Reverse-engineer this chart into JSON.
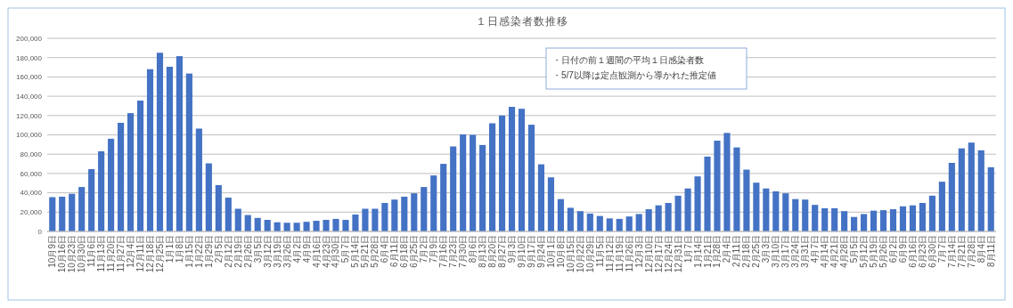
{
  "chart_data": {
    "type": "bar",
    "title": "１日感染者数推移",
    "categories": [
      "10月9日",
      "10月16日",
      "10月23日",
      "10月30日",
      "11月6日",
      "11月13日",
      "11月20日",
      "11月27日",
      "12月4日",
      "12月11日",
      "12月18日",
      "12月25日",
      "1月1日",
      "1月8日",
      "1月15日",
      "1月22日",
      "1月29日",
      "2月5日",
      "2月12日",
      "2月19日",
      "2月26日",
      "3月5日",
      "3月12日",
      "3月19日",
      "3月26日",
      "4月2日",
      "4月9日",
      "4月16日",
      "4月23日",
      "4月30日",
      "5月7日",
      "5月14日",
      "5月21日",
      "5月28日",
      "6月4日",
      "6月11日",
      "6月18日",
      "6月25日",
      "7月2日",
      "7月9日",
      "7月16日",
      "7月23日",
      "7月30日",
      "8月6日",
      "8月13日",
      "8月20日",
      "8月27日",
      "9月3日",
      "9月10日",
      "9月17日",
      "9月24日",
      "10月1日",
      "10月8日",
      "10月15日",
      "10月22日",
      "10月29日",
      "11月5日",
      "11月12日",
      "11月19日",
      "11月26日",
      "12月3日",
      "12月10日",
      "12月17日",
      "12月24日",
      "12月31日",
      "1月7日",
      "1月14日",
      "1月21日",
      "1月28日",
      "2月4日",
      "2月11日",
      "2月18日",
      "2月25日",
      "3月3日",
      "3月10日",
      "3月17日",
      "3月24日",
      "3月31日",
      "4月7日",
      "4月14日",
      "4月21日",
      "4月28日",
      "5月5日",
      "5月12日",
      "5月19日",
      "5月26日",
      "6月2日",
      "6月9日",
      "6月16日",
      "6月23日",
      "6月30日",
      "7月7日",
      "7月14日",
      "7月21日",
      "7月28日",
      "8月4日",
      "8月11日"
    ],
    "values": [
      35500,
      36000,
      39000,
      46000,
      64500,
      83000,
      96000,
      112500,
      122500,
      135500,
      168000,
      185000,
      170500,
      181500,
      163500,
      106500,
      70500,
      48000,
      35000,
      23500,
      17000,
      14000,
      12000,
      9500,
      9000,
      9000,
      10000,
      11000,
      12000,
      13000,
      12000,
      17500,
      23500,
      23500,
      29500,
      33000,
      36000,
      39500,
      46000,
      58000,
      70000,
      88000,
      100500,
      100000,
      89500,
      112000,
      120000,
      129000,
      127000,
      110500,
      69500,
      56000,
      33500,
      24500,
      21000,
      18500,
      16000,
      13500,
      13000,
      15500,
      18000,
      23000,
      27000,
      29500,
      37000,
      44500,
      57000,
      77500,
      94000,
      102000,
      87000,
      64000,
      50500,
      44500,
      41500,
      39500,
      33500,
      33000,
      27500,
      24000,
      24000,
      21000,
      15000,
      18000,
      21500,
      22000,
      23000,
      26000,
      27000,
      29500,
      37000,
      51500,
      71000,
      86000,
      92000,
      84000,
      66500
    ],
    "color": "#4472c4",
    "ylim": [
      0,
      200000
    ],
    "yticks": [
      {
        "value": 0,
        "label": "0"
      },
      {
        "value": 20000,
        "label": "20,000"
      },
      {
        "value": 40000,
        "label": "40,000"
      },
      {
        "value": 60000,
        "label": "60,000"
      },
      {
        "value": 80000,
        "label": "80,000"
      },
      {
        "value": 100000,
        "label": "100,000"
      },
      {
        "value": 120000,
        "label": "120,000"
      },
      {
        "value": 140000,
        "label": "140,000"
      },
      {
        "value": 160000,
        "label": "160,000"
      },
      {
        "value": 180000,
        "label": "180,000"
      },
      {
        "value": 200000,
        "label": "200,000"
      }
    ],
    "grid": "y",
    "annotations": [
      "・日付の前１週間の平均１日感染者数",
      "・5/7以降は定点観測から導かれた推定値"
    ]
  }
}
